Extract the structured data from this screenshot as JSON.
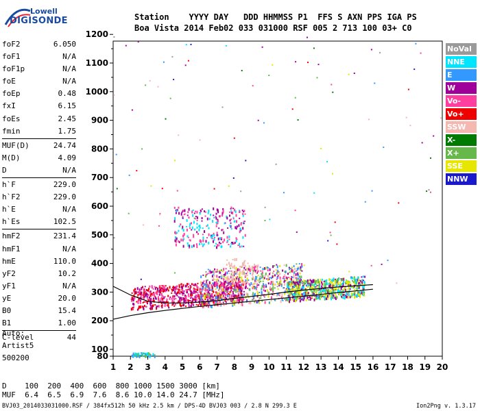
{
  "logo": {
    "line1": "Lowell",
    "line2": "DIGISONDE"
  },
  "header": {
    "row1": "Station    YYYY DAY   DDD HHMMSS P1  FFS S AXN PPS IGA PS",
    "row2": "Boa Vista 2014 Feb02 033 031000 RSF 005 2 713 100 03+ C0"
  },
  "params": {
    "group1": [
      {
        "label": "foF2",
        "value": "6.050"
      },
      {
        "label": "foF1",
        "value": "N/A"
      },
      {
        "label": "foF1p",
        "value": "N/A"
      },
      {
        "label": "foE",
        "value": "N/A"
      },
      {
        "label": "foEp",
        "value": "0.48"
      },
      {
        "label": "fxI",
        "value": "6.15"
      },
      {
        "label": "foEs",
        "value": "2.45"
      },
      {
        "label": "fmin",
        "value": "1.75"
      }
    ],
    "group2": [
      {
        "label": "MUF(D)",
        "value": "24.74"
      },
      {
        "label": "M(D)",
        "value": "4.09"
      },
      {
        "label": "D",
        "value": "N/A"
      }
    ],
    "group3": [
      {
        "label": "h`F",
        "value": "229.0"
      },
      {
        "label": "h`F2",
        "value": "229.0"
      },
      {
        "label": "h`E",
        "value": "N/A"
      },
      {
        "label": "h`Es",
        "value": "102.5"
      }
    ],
    "group4": [
      {
        "label": "hmF2",
        "value": "231.4"
      },
      {
        "label": "hmF1",
        "value": "N/A"
      },
      {
        "label": "hmE",
        "value": "110.0"
      },
      {
        "label": "yF2",
        "value": "10.2"
      },
      {
        "label": "yF1",
        "value": "N/A"
      },
      {
        "label": "yE",
        "value": "20.0"
      },
      {
        "label": "B0",
        "value": "15.4"
      },
      {
        "label": "B1",
        "value": "1.00"
      }
    ],
    "group5": [
      {
        "label": "C-level",
        "value": "44"
      }
    ]
  },
  "notes": [
    "Auto:",
    "Artist5",
    "500200"
  ],
  "legend": [
    {
      "label": "NoVal",
      "color": "#9a9a9a"
    },
    {
      "label": "NNE",
      "color": "#00e5ff"
    },
    {
      "label": "E",
      "color": "#3399ff"
    },
    {
      "label": "W",
      "color": "#a0009a"
    },
    {
      "label": "Vo-",
      "color": "#ff3fa0"
    },
    {
      "label": "Vo+",
      "color": "#ee0000"
    },
    {
      "label": "SSW",
      "color": "#f4b8b0"
    },
    {
      "label": "X-",
      "color": "#007a00"
    },
    {
      "label": "X+",
      "color": "#66b84a"
    },
    {
      "label": "SSE",
      "color": "#e6e600"
    },
    {
      "label": "NNW",
      "color": "#1a1acc"
    }
  ],
  "chart_data": {
    "type": "scatter",
    "xlim": [
      1,
      20
    ],
    "ylim": [
      80,
      1200
    ],
    "x_ticks": [
      1,
      2,
      3,
      4,
      5,
      6,
      7,
      8,
      9,
      10,
      11,
      12,
      13,
      14,
      15,
      16,
      17,
      18,
      19,
      20
    ],
    "y_ticks": [
      80,
      100,
      200,
      300,
      400,
      500,
      600,
      700,
      800,
      900,
      1000,
      1100,
      1200
    ],
    "grid": false,
    "legend_position": "right",
    "clusters": [
      {
        "x": [
          2.0,
          3.4
        ],
        "y": [
          80,
          92
        ],
        "colors": [
          "NNE",
          "E",
          "X+"
        ]
      },
      {
        "x": [
          2.0,
          8.5
        ],
        "y": [
          240,
          320
        ],
        "colors": [
          "W",
          "Vo-",
          "Vo+"
        ]
      },
      {
        "x": [
          6.0,
          12.0
        ],
        "y": [
          250,
          380
        ],
        "colors": [
          "W",
          "E",
          "SSW",
          "X+",
          "SSE",
          "Vo-"
        ]
      },
      {
        "x": [
          11.0,
          15.5
        ],
        "y": [
          270,
          340
        ],
        "colors": [
          "SSE",
          "NNE",
          "X+",
          "W"
        ]
      },
      {
        "x": [
          4.5,
          8.6
        ],
        "y": [
          460,
          600
        ],
        "colors": [
          "W",
          "Vo-",
          "NNE"
        ]
      },
      {
        "x": [
          7.5,
          9.5
        ],
        "y": [
          330,
          420
        ],
        "colors": [
          "SSW"
        ]
      }
    ],
    "traces": [
      {
        "x": [
          1,
          2,
          3,
          4,
          5,
          6,
          7,
          8,
          9,
          10,
          11,
          12,
          13,
          14,
          15,
          16
        ],
        "y": [
          205,
          218,
          228,
          236,
          243,
          250,
          256,
          262,
          268,
          274,
          280,
          286,
          292,
          298,
          304,
          310
        ],
        "color": "#000"
      },
      {
        "x": [
          1,
          2,
          3,
          4,
          5,
          6,
          7,
          8,
          9,
          10,
          11,
          12,
          13,
          14,
          15,
          16
        ],
        "y": [
          320,
          290,
          268,
          262,
          262,
          265,
          270,
          278,
          285,
          292,
          300,
          307,
          313,
          318,
          322,
          326
        ],
        "color": "#000"
      }
    ]
  },
  "bottom": {
    "row1": "D    100  200  400  600  800 1000 1500 3000 [km]",
    "row2": "MUF  6.4  6.5  6.9  7.6  8.6 10.0 14.0 24.7 [MHz]"
  },
  "footer": {
    "left": "BVJ03_2014033031000.RSF / 384fx512h 50 kHz 2.5 km / DPS-4D BVJ03 003 / 2.8 N 299.3 E",
    "right": "Ion2Png v. 1.3.17"
  }
}
